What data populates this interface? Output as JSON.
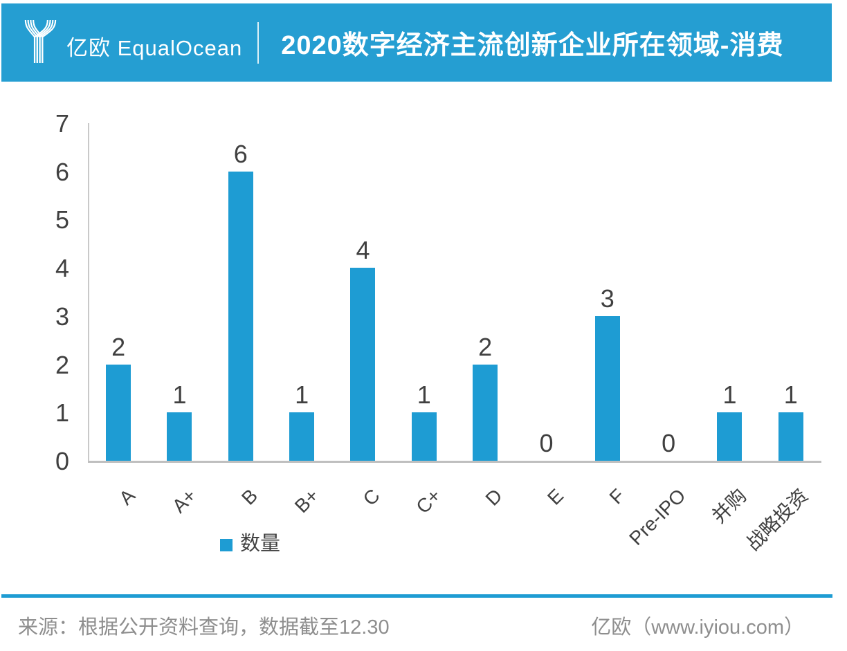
{
  "header": {
    "logo": {
      "brand_cn": "亿欧",
      "brand_en": "EqualOcean"
    },
    "title": "2020数字经济主流创新企业所在领域-消费"
  },
  "chart_data": {
    "type": "bar",
    "title": "2020数字经济主流创新企业所在领域-消费",
    "categories": [
      "A",
      "A+",
      "B",
      "B+",
      "C",
      "C+",
      "D",
      "E",
      "F",
      "Pre-IPO",
      "并购",
      "战略投资"
    ],
    "values": [
      2,
      1,
      6,
      1,
      4,
      1,
      2,
      0,
      3,
      0,
      1,
      1
    ],
    "series_name": "数量",
    "xlabel": "",
    "ylabel": "",
    "ylim": [
      0,
      7
    ],
    "yticks": [
      0,
      1,
      2,
      3,
      4,
      5,
      6,
      7
    ],
    "grid": false,
    "data_labels": true,
    "legend_position": "bottom-left",
    "x_tick_rotation_deg": 45
  },
  "legend": {
    "label": "数量"
  },
  "footer": {
    "source": "来源：根据公开资料查询，数据截至12.30",
    "credit": "亿欧（www.iyiou.com）"
  },
  "colors": {
    "header_bg": "#259ED2",
    "bar": "#1E9CD3",
    "footer_rule": "#1E9CD3",
    "axis": "#C3C3C3",
    "label_text": "#404040",
    "footer_text": "#8E8E8E",
    "header_text": "#FFFFFF"
  }
}
